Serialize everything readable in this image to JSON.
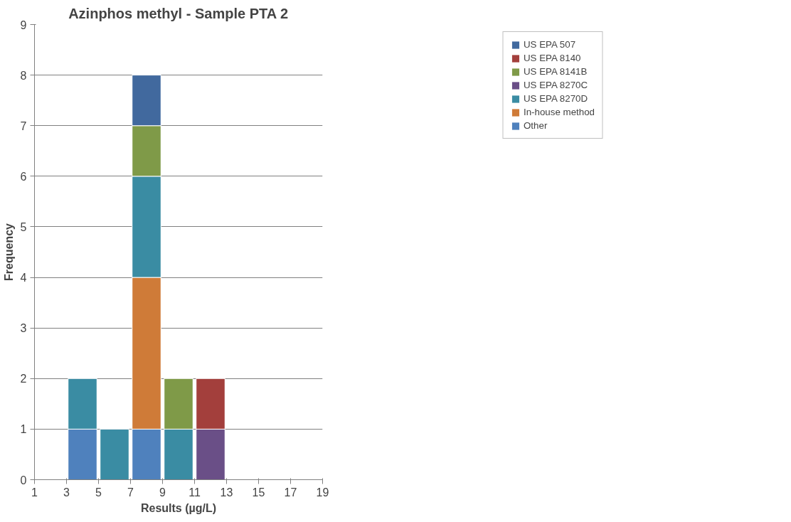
{
  "chart_data": {
    "type": "bar",
    "stacked": true,
    "title": "Azinphos methyl - Sample PTA 2",
    "xlabel": "Results (µg/L)",
    "ylabel": "Frequency",
    "x": [
      4,
      6,
      8,
      10,
      12
    ],
    "series": [
      {
        "name": "Other",
        "color": "#4f81bd",
        "values": [
          1,
          null,
          1,
          null,
          null
        ]
      },
      {
        "name": "In-house method",
        "color": "#cf7b38",
        "values": [
          null,
          null,
          3,
          null,
          null
        ]
      },
      {
        "name": "US EPA 8270D",
        "color": "#3a8ca3",
        "values": [
          1,
          1,
          2,
          1,
          null
        ]
      },
      {
        "name": "US EPA 8270C",
        "color": "#6a4f87",
        "values": [
          null,
          null,
          null,
          null,
          1
        ]
      },
      {
        "name": "US EPA 8141B",
        "color": "#7f9a48",
        "values": [
          null,
          null,
          1,
          1,
          null
        ]
      },
      {
        "name": "US EPA 8140",
        "color": "#a33f3c",
        "values": [
          null,
          null,
          null,
          null,
          1
        ]
      },
      {
        "name": "US EPA 507",
        "color": "#41699e",
        "values": [
          null,
          null,
          1,
          null,
          null
        ]
      }
    ],
    "xlim": [
      1,
      19
    ],
    "xticks": [
      1,
      3,
      5,
      7,
      9,
      11,
      13,
      15,
      17,
      19
    ],
    "ylim": [
      0,
      9
    ],
    "yticks": [
      0,
      1,
      2,
      3,
      4,
      5,
      6,
      7,
      8,
      9
    ],
    "grid": "y",
    "legend": "top right"
  }
}
